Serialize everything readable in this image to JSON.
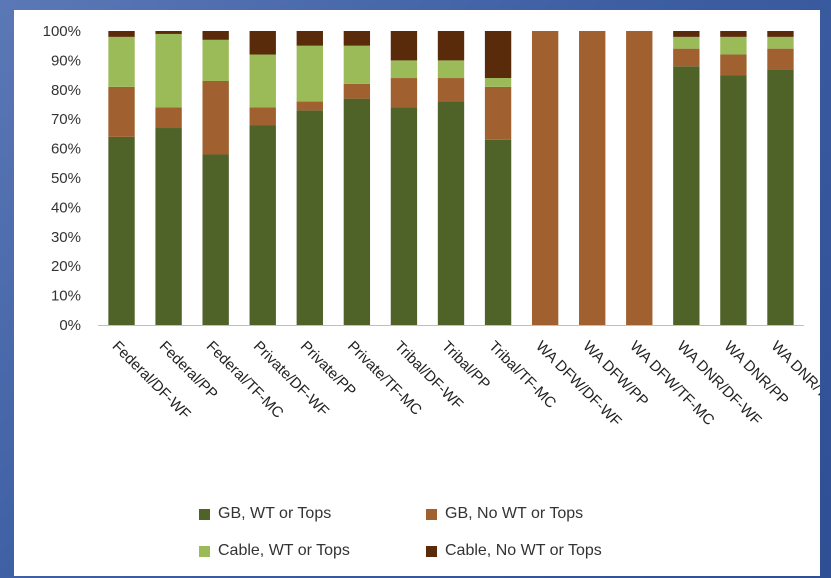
{
  "chart_data": {
    "type": "bar",
    "stacked": true,
    "categories": [
      "Federal/DF-WF",
      "Federal/PP",
      "Federal/TF-MC",
      "Private/DF-WF",
      "Private/PP",
      "Private/TF-MC",
      "Tribal/DF-WF",
      "Tribal/PP",
      "Tribal/TF-MC",
      "WA DFW/DF-WF",
      "WA DFW/PP",
      "WA DFW/TF-MC",
      "WA DNR/DF-WF",
      "WA DNR/PP",
      "WA DNR/TF-MC"
    ],
    "series": [
      {
        "name": "GB, WT  or Tops",
        "color": "#4f6228",
        "values": [
          64,
          67,
          58,
          68,
          73,
          77,
          74,
          76,
          63,
          0,
          0,
          0,
          88,
          85,
          87
        ]
      },
      {
        "name": "GB, No WT or Tops",
        "color": "#a0602f",
        "values": [
          17,
          7,
          25,
          6,
          3,
          5,
          10,
          8,
          18,
          100,
          100,
          100,
          6,
          7,
          7
        ]
      },
      {
        "name": "Cable, WT or Tops",
        "color": "#9bbb59",
        "values": [
          17,
          25,
          14,
          18,
          19,
          13,
          6,
          6,
          3,
          0,
          0,
          0,
          4,
          6,
          4
        ]
      },
      {
        "name": "Cable, No WT or Tops",
        "color": "#5a2b0a",
        "values": [
          2,
          1,
          3,
          8,
          5,
          5,
          10,
          10,
          16,
          0,
          0,
          0,
          2,
          2,
          2
        ]
      }
    ],
    "yticks": [
      "0%",
      "10%",
      "20%",
      "30%",
      "40%",
      "50%",
      "60%",
      "70%",
      "80%",
      "90%",
      "100%"
    ],
    "ylim": [
      0,
      100
    ],
    "legend_position": "bottom",
    "grid": false
  }
}
